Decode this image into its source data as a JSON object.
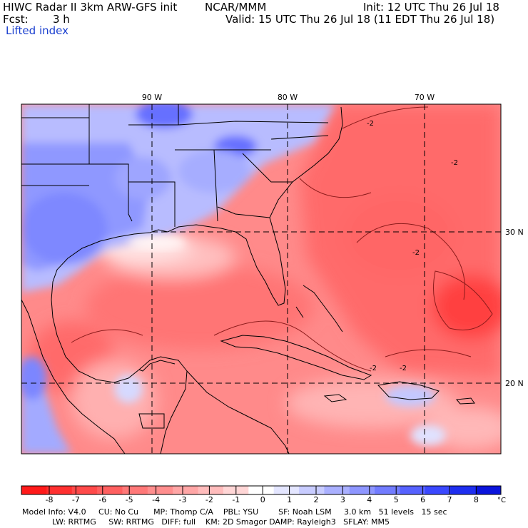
{
  "header": {
    "model": "HIWC Radar II 3km ARW-GFS init",
    "org": "NCAR/MMM",
    "init": "Init: 12 UTC Thu 26 Jul 18",
    "fcst_label": "Fcst:",
    "fcst_value": "3 h",
    "valid": "Valid: 15 UTC Thu 26 Jul 18 (11 EDT Thu 26 Jul 18)",
    "field": "Lifted index"
  },
  "map": {
    "lon_labels": [
      "90 W",
      "80 W",
      "70 W"
    ],
    "lat_labels": [
      "30 N",
      "20 N"
    ],
    "contour_labels": [
      "-2",
      "-2",
      "-2",
      "-2",
      "-2"
    ]
  },
  "colorbar": {
    "ticks": [
      "-8",
      "-7",
      "-6",
      "-5",
      "-4",
      "-3",
      "-2",
      "-1",
      "0",
      "1",
      "2",
      "3",
      "4",
      "5",
      "6",
      "7",
      "8"
    ],
    "unit": "°C",
    "colors": [
      "#ff1a1a",
      "#ff3030",
      "#ff4a4a",
      "#ff6060",
      "#ff7878",
      "#ff8e8e",
      "#ffa6a6",
      "#ffbcbc",
      "#ffd6d6",
      "#ffffff",
      "#e4e6ff",
      "#c8ccff",
      "#aab0ff",
      "#8e96ff",
      "#727cff",
      "#5662ff",
      "#3a48ff",
      "#1e2ef0",
      "#0a14dc"
    ]
  },
  "footer": {
    "line1": "Model Info: V4.0     CU: No Cu      MP: Thomp C/A    PBL: YSU        SF: Noah LSM     3.0 km   51 levels   15 sec",
    "line2": "LW: RRTMG     SW: RRTMG   DIFF: full    KM: 2D Smagor DAMP: Rayleigh3   SFLAY: MM5"
  }
}
